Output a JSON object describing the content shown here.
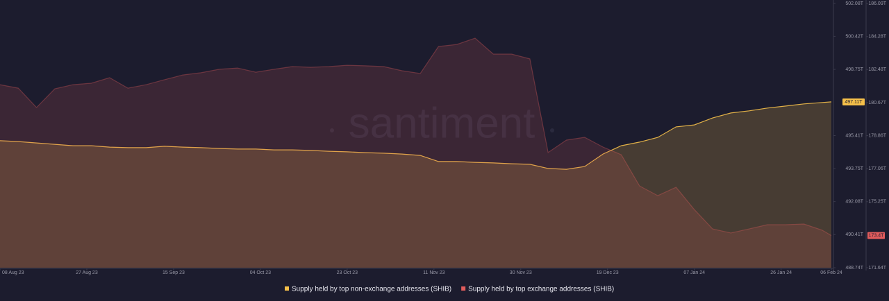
{
  "chart_data": {
    "type": "area",
    "watermark": "santiment",
    "x": [
      "2023-08-08",
      "2023-08-12",
      "2023-08-16",
      "2023-08-20",
      "2023-08-24",
      "2023-08-28",
      "2023-09-01",
      "2023-09-05",
      "2023-09-09",
      "2023-09-13",
      "2023-09-17",
      "2023-09-21",
      "2023-09-25",
      "2023-09-29",
      "2023-10-03",
      "2023-10-07",
      "2023-10-11",
      "2023-10-15",
      "2023-10-19",
      "2023-10-23",
      "2023-10-27",
      "2023-10-31",
      "2023-11-04",
      "2023-11-08",
      "2023-11-12",
      "2023-11-16",
      "2023-11-20",
      "2023-11-24",
      "2023-11-28",
      "2023-12-02",
      "2023-12-06",
      "2023-12-10",
      "2023-12-14",
      "2023-12-18",
      "2023-12-22",
      "2023-12-26",
      "2023-12-30",
      "2024-01-03",
      "2024-01-07",
      "2024-01-11",
      "2024-01-15",
      "2024-01-19",
      "2024-01-23",
      "2024-01-27",
      "2024-01-31",
      "2024-02-04",
      "2024-02-06"
    ],
    "xlim": [
      "2023-08-08",
      "2024-02-06"
    ],
    "xticks": [
      {
        "value": "2023-08-08",
        "label": "08 Aug 23"
      },
      {
        "value": "2023-08-27",
        "label": "27 Aug 23"
      },
      {
        "value": "2023-09-15",
        "label": "15 Sep 23"
      },
      {
        "value": "2023-10-04",
        "label": "04 Oct 23"
      },
      {
        "value": "2023-10-23",
        "label": "23 Oct 23"
      },
      {
        "value": "2023-11-11",
        "label": "11 Nov 23"
      },
      {
        "value": "2023-11-30",
        "label": "30 Nov 23"
      },
      {
        "value": "2023-12-19",
        "label": "19 Dec 23"
      },
      {
        "value": "2024-01-07",
        "label": "07 Jan 24"
      },
      {
        "value": "2024-01-26",
        "label": "26 Jan 24"
      },
      {
        "value": "2024-02-06",
        "label": "06 Feb 24"
      }
    ],
    "ylim": [
      488.74,
      502.08
    ],
    "yticks": [
      {
        "value": 502.08,
        "label": "502.08T"
      },
      {
        "value": 500.42,
        "label": "500.42T"
      },
      {
        "value": 498.75,
        "label": "498.75T"
      },
      {
        "value": 495.41,
        "label": "495.41T"
      },
      {
        "value": 493.75,
        "label": "493.75T"
      },
      {
        "value": 492.08,
        "label": "492.08T"
      },
      {
        "value": 490.41,
        "label": "490.41T"
      },
      {
        "value": 488.74,
        "label": "488.74T"
      }
    ],
    "y2lim": [
      171.64,
      186.09
    ],
    "y2ticks": [
      {
        "value": 186.09,
        "label": "186.09T"
      },
      {
        "value": 184.28,
        "label": "184.28T"
      },
      {
        "value": 182.48,
        "label": "182.48T"
      },
      {
        "value": 180.67,
        "label": "180.67T"
      },
      {
        "value": 178.86,
        "label": "178.86T"
      },
      {
        "value": 177.06,
        "label": "177.06T"
      },
      {
        "value": 175.25,
        "label": "175.25T"
      },
      {
        "value": 171.64,
        "label": "171.64T"
      }
    ],
    "series": [
      {
        "name": "Supply held by top non-exchange addresses (SHIB)",
        "color": "#f5c04a",
        "axis": "y",
        "values": [
          495.15,
          495.11,
          495.04,
          494.97,
          494.9,
          494.9,
          494.83,
          494.8,
          494.8,
          494.87,
          494.83,
          494.8,
          494.76,
          494.73,
          494.73,
          494.69,
          494.69,
          494.66,
          494.62,
          494.59,
          494.55,
          494.52,
          494.48,
          494.41,
          494.1,
          494.1,
          494.06,
          494.03,
          493.99,
          493.96,
          493.75,
          493.71,
          493.85,
          494.48,
          494.9,
          495.08,
          495.32,
          495.85,
          495.95,
          496.3,
          496.55,
          496.66,
          496.8,
          496.9,
          497.01,
          497.08,
          497.11
        ],
        "value_labels": [
          null,
          null,
          null,
          null,
          null,
          null,
          null,
          null,
          null,
          null,
          null,
          null,
          null,
          null,
          null,
          null,
          null,
          null,
          null,
          null,
          null,
          null,
          null,
          null,
          null,
          null,
          null,
          null,
          null,
          null,
          null,
          null,
          null,
          null,
          null,
          null,
          null,
          null,
          null,
          null,
          null,
          null,
          null,
          null,
          null,
          null,
          "497.11T"
        ]
      },
      {
        "name": "Supply held by top exchange addresses (SHIB)",
        "color": "#e15c5c",
        "axis": "y2",
        "values": [
          181.65,
          181.46,
          180.4,
          181.42,
          181.65,
          181.73,
          182.03,
          181.46,
          181.65,
          181.92,
          182.18,
          182.3,
          182.49,
          182.56,
          182.33,
          182.49,
          182.64,
          182.6,
          182.64,
          182.71,
          182.68,
          182.64,
          182.41,
          182.26,
          183.74,
          183.85,
          184.19,
          183.32,
          183.32,
          183.06,
          177.94,
          178.62,
          178.77,
          178.24,
          177.82,
          176.11,
          175.58,
          176.04,
          174.82,
          173.76,
          173.54,
          173.76,
          173.99,
          173.99,
          174.03,
          173.69,
          173.4
        ],
        "value_labels": [
          null,
          null,
          null,
          null,
          null,
          null,
          null,
          null,
          null,
          null,
          null,
          null,
          null,
          null,
          null,
          null,
          null,
          null,
          null,
          null,
          null,
          null,
          null,
          null,
          null,
          null,
          null,
          null,
          null,
          null,
          null,
          null,
          null,
          null,
          null,
          null,
          null,
          null,
          null,
          null,
          null,
          null,
          null,
          null,
          null,
          null,
          "173.4T"
        ]
      }
    ],
    "grid": false
  }
}
